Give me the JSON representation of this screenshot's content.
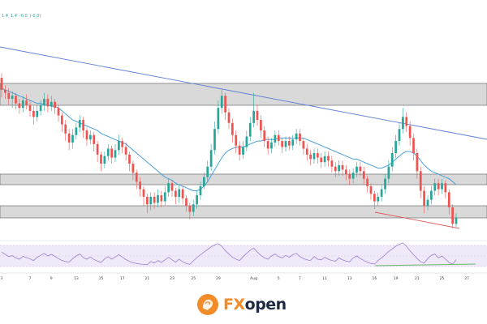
{
  "info": {
    "price1": "1.4",
    "price2": "1.4",
    "change": "-0.0",
    "change_pct": "(-0.0)"
  },
  "brand": {
    "fx": "FX",
    "open": "open"
  },
  "chart_data": {
    "type": "candlestick",
    "title": "",
    "colors": {
      "up": "#26a69a",
      "down": "#ef5350",
      "ma": "#4a9fd8",
      "trendline": "#5b7fd6",
      "support_line": "#e05a5a",
      "zone_fill": "#d9d9d9",
      "rsi": "#9b7fd1",
      "rsi_trend": "#66bb6a"
    },
    "x_tick_labels": [
      {
        "label": "3",
        "i": 0
      },
      {
        "label": "7",
        "i": 8
      },
      {
        "label": "9",
        "i": 14
      },
      {
        "label": "13",
        "i": 21
      },
      {
        "label": "15",
        "i": 28
      },
      {
        "label": "17",
        "i": 34
      },
      {
        "label": "21",
        "i": 41
      },
      {
        "label": "23",
        "i": 48
      },
      {
        "label": "25",
        "i": 54
      },
      {
        "label": "29",
        "i": 61
      },
      {
        "label": "Aug",
        "i": 71
      },
      {
        "label": "5",
        "i": 78
      },
      {
        "label": "7",
        "i": 84
      },
      {
        "label": "11",
        "i": 91
      },
      {
        "label": "13",
        "i": 98
      },
      {
        "label": "16",
        "i": 105
      },
      {
        "label": "19",
        "i": 111
      },
      {
        "label": "21",
        "i": 117
      },
      {
        "label": "25",
        "i": 124
      },
      {
        "label": "27",
        "i": 131
      }
    ],
    "candles": [
      [
        1.0,
        0.92,
        0.87,
        1.03
      ],
      [
        0.92,
        0.9,
        0.86,
        0.95
      ],
      [
        0.9,
        0.86,
        0.82,
        0.93
      ],
      [
        0.86,
        0.88,
        0.8,
        0.91
      ],
      [
        0.88,
        0.83,
        0.79,
        0.9
      ],
      [
        0.83,
        0.8,
        0.76,
        0.86
      ],
      [
        0.8,
        0.85,
        0.77,
        0.88
      ],
      [
        0.85,
        0.82,
        0.79,
        0.89
      ],
      [
        0.82,
        0.78,
        0.74,
        0.85
      ],
      [
        0.78,
        0.74,
        0.69,
        0.81
      ],
      [
        0.74,
        0.78,
        0.71,
        0.82
      ],
      [
        0.78,
        0.82,
        0.75,
        0.85
      ],
      [
        0.82,
        0.86,
        0.78,
        0.9
      ],
      [
        0.86,
        0.81,
        0.77,
        0.89
      ],
      [
        0.81,
        0.84,
        0.78,
        0.88
      ],
      [
        0.84,
        0.8,
        0.76,
        0.86
      ],
      [
        0.8,
        0.75,
        0.71,
        0.82
      ],
      [
        0.75,
        0.69,
        0.64,
        0.77
      ],
      [
        0.69,
        0.63,
        0.58,
        0.72
      ],
      [
        0.63,
        0.57,
        0.52,
        0.66
      ],
      [
        0.57,
        0.62,
        0.53,
        0.66
      ],
      [
        0.62,
        0.67,
        0.59,
        0.7
      ],
      [
        0.67,
        0.72,
        0.64,
        0.75
      ],
      [
        0.72,
        0.65,
        0.6,
        0.74
      ],
      [
        0.65,
        0.59,
        0.55,
        0.67
      ],
      [
        0.59,
        0.62,
        0.56,
        0.65
      ],
      [
        0.62,
        0.56,
        0.51,
        0.64
      ],
      [
        0.56,
        0.49,
        0.44,
        0.58
      ],
      [
        0.49,
        0.43,
        0.38,
        0.51
      ],
      [
        0.43,
        0.48,
        0.4,
        0.51
      ],
      [
        0.48,
        0.53,
        0.45,
        0.56
      ],
      [
        0.53,
        0.47,
        0.43,
        0.55
      ],
      [
        0.47,
        0.52,
        0.44,
        0.56
      ],
      [
        0.52,
        0.58,
        0.49,
        0.62
      ],
      [
        0.58,
        0.54,
        0.5,
        0.6
      ],
      [
        0.54,
        0.49,
        0.45,
        0.57
      ],
      [
        0.49,
        0.43,
        0.38,
        0.51
      ],
      [
        0.43,
        0.37,
        0.32,
        0.45
      ],
      [
        0.37,
        0.31,
        0.26,
        0.39
      ],
      [
        0.31,
        0.26,
        0.21,
        0.34
      ],
      [
        0.26,
        0.21,
        0.15,
        0.28
      ],
      [
        0.21,
        0.16,
        0.1,
        0.23
      ],
      [
        0.16,
        0.21,
        0.12,
        0.24
      ],
      [
        0.21,
        0.17,
        0.13,
        0.24
      ],
      [
        0.17,
        0.22,
        0.14,
        0.26
      ],
      [
        0.22,
        0.18,
        0.14,
        0.25
      ],
      [
        0.18,
        0.24,
        0.15,
        0.28
      ],
      [
        0.24,
        0.3,
        0.21,
        0.33
      ],
      [
        0.3,
        0.25,
        0.21,
        0.32
      ],
      [
        0.25,
        0.21,
        0.16,
        0.27
      ],
      [
        0.21,
        0.26,
        0.17,
        0.29
      ],
      [
        0.26,
        0.2,
        0.16,
        0.28
      ],
      [
        0.2,
        0.15,
        0.11,
        0.22
      ],
      [
        0.15,
        0.11,
        0.06,
        0.17
      ],
      [
        0.11,
        0.16,
        0.08,
        0.19
      ],
      [
        0.16,
        0.22,
        0.13,
        0.25
      ],
      [
        0.22,
        0.28,
        0.19,
        0.31
      ],
      [
        0.28,
        0.34,
        0.26,
        0.37
      ],
      [
        0.34,
        0.41,
        0.31,
        0.45
      ],
      [
        0.41,
        0.52,
        0.38,
        0.56
      ],
      [
        0.52,
        0.66,
        0.49,
        0.71
      ],
      [
        0.66,
        0.8,
        0.63,
        0.85
      ],
      [
        0.8,
        0.88,
        0.76,
        0.92
      ],
      [
        0.88,
        0.77,
        0.72,
        0.9
      ],
      [
        0.77,
        0.7,
        0.66,
        0.8
      ],
      [
        0.7,
        0.62,
        0.57,
        0.73
      ],
      [
        0.62,
        0.55,
        0.5,
        0.65
      ],
      [
        0.55,
        0.49,
        0.45,
        0.58
      ],
      [
        0.49,
        0.54,
        0.46,
        0.58
      ],
      [
        0.54,
        0.61,
        0.51,
        0.65
      ],
      [
        0.61,
        0.7,
        0.58,
        0.74
      ],
      [
        0.7,
        0.78,
        0.67,
        0.9
      ],
      [
        0.78,
        0.72,
        0.68,
        0.82
      ],
      [
        0.72,
        0.65,
        0.6,
        0.75
      ],
      [
        0.65,
        0.58,
        0.54,
        0.68
      ],
      [
        0.58,
        0.53,
        0.49,
        0.61
      ],
      [
        0.53,
        0.57,
        0.5,
        0.6
      ],
      [
        0.57,
        0.62,
        0.54,
        0.65
      ],
      [
        0.62,
        0.58,
        0.55,
        0.65
      ],
      [
        0.58,
        0.54,
        0.5,
        0.6
      ],
      [
        0.54,
        0.58,
        0.51,
        0.61
      ],
      [
        0.58,
        0.55,
        0.52,
        0.61
      ],
      [
        0.55,
        0.59,
        0.52,
        0.62
      ],
      [
        0.59,
        0.63,
        0.56,
        0.66
      ],
      [
        0.63,
        0.58,
        0.55,
        0.66
      ],
      [
        0.58,
        0.53,
        0.49,
        0.6
      ],
      [
        0.53,
        0.49,
        0.45,
        0.56
      ],
      [
        0.49,
        0.46,
        0.42,
        0.52
      ],
      [
        0.46,
        0.5,
        0.43,
        0.53
      ],
      [
        0.5,
        0.47,
        0.43,
        0.53
      ],
      [
        0.47,
        0.44,
        0.4,
        0.5
      ],
      [
        0.44,
        0.48,
        0.41,
        0.51
      ],
      [
        0.48,
        0.45,
        0.41,
        0.51
      ],
      [
        0.45,
        0.41,
        0.37,
        0.48
      ],
      [
        0.41,
        0.38,
        0.34,
        0.44
      ],
      [
        0.38,
        0.42,
        0.35,
        0.45
      ],
      [
        0.42,
        0.39,
        0.35,
        0.45
      ],
      [
        0.39,
        0.36,
        0.32,
        0.42
      ],
      [
        0.36,
        0.33,
        0.29,
        0.39
      ],
      [
        0.33,
        0.37,
        0.3,
        0.4
      ],
      [
        0.37,
        0.41,
        0.34,
        0.44
      ],
      [
        0.41,
        0.38,
        0.35,
        0.44
      ],
      [
        0.38,
        0.33,
        0.29,
        0.41
      ],
      [
        0.33,
        0.28,
        0.24,
        0.35
      ],
      [
        0.28,
        0.23,
        0.19,
        0.3
      ],
      [
        0.23,
        0.18,
        0.13,
        0.25
      ],
      [
        0.18,
        0.21,
        0.15,
        0.24
      ],
      [
        0.21,
        0.26,
        0.18,
        0.29
      ],
      [
        0.26,
        0.33,
        0.23,
        0.36
      ],
      [
        0.33,
        0.41,
        0.3,
        0.45
      ],
      [
        0.41,
        0.5,
        0.38,
        0.54
      ],
      [
        0.5,
        0.58,
        0.47,
        0.62
      ],
      [
        0.58,
        0.66,
        0.55,
        0.7
      ],
      [
        0.66,
        0.74,
        0.63,
        0.8
      ],
      [
        0.74,
        0.68,
        0.64,
        0.77
      ],
      [
        0.68,
        0.6,
        0.55,
        0.71
      ],
      [
        0.6,
        0.5,
        0.45,
        0.63
      ],
      [
        0.5,
        0.38,
        0.33,
        0.53
      ],
      [
        0.38,
        0.25,
        0.2,
        0.41
      ],
      [
        0.25,
        0.15,
        0.1,
        0.28
      ],
      [
        0.15,
        0.19,
        0.12,
        0.22
      ],
      [
        0.19,
        0.25,
        0.16,
        0.28
      ],
      [
        0.25,
        0.3,
        0.22,
        0.33
      ],
      [
        0.3,
        0.26,
        0.22,
        0.33
      ],
      [
        0.26,
        0.3,
        0.23,
        0.33
      ],
      [
        0.3,
        0.24,
        0.2,
        0.32
      ],
      [
        0.24,
        0.14,
        0.09,
        0.26
      ],
      [
        0.14,
        0.03,
        0.0,
        0.16
      ],
      [
        0.03,
        0.07,
        0.01,
        0.1
      ]
    ],
    "ma": [
      0.93,
      0.92,
      0.91,
      0.9,
      0.89,
      0.88,
      0.87,
      0.86,
      0.85,
      0.84,
      0.83,
      0.83,
      0.82,
      0.82,
      0.81,
      0.81,
      0.8,
      0.78,
      0.76,
      0.74,
      0.72,
      0.71,
      0.7,
      0.69,
      0.68,
      0.67,
      0.66,
      0.65,
      0.63,
      0.62,
      0.61,
      0.6,
      0.59,
      0.58,
      0.57,
      0.56,
      0.54,
      0.52,
      0.5,
      0.48,
      0.46,
      0.44,
      0.42,
      0.4,
      0.38,
      0.36,
      0.34,
      0.33,
      0.32,
      0.3,
      0.29,
      0.28,
      0.27,
      0.26,
      0.25,
      0.25,
      0.26,
      0.28,
      0.31,
      0.35,
      0.39,
      0.43,
      0.47,
      0.5,
      0.52,
      0.53,
      0.54,
      0.54,
      0.54,
      0.55,
      0.56,
      0.57,
      0.58,
      0.58,
      0.59,
      0.59,
      0.59,
      0.59,
      0.6,
      0.6,
      0.6,
      0.6,
      0.6,
      0.6,
      0.6,
      0.6,
      0.59,
      0.58,
      0.57,
      0.56,
      0.55,
      0.54,
      0.53,
      0.52,
      0.51,
      0.5,
      0.49,
      0.48,
      0.47,
      0.46,
      0.46,
      0.45,
      0.44,
      0.43,
      0.42,
      0.41,
      0.4,
      0.4,
      0.41,
      0.42,
      0.44,
      0.46,
      0.48,
      0.5,
      0.51,
      0.51,
      0.5,
      0.48,
      0.45,
      0.42,
      0.4,
      0.38,
      0.37,
      0.36,
      0.35,
      0.34,
      0.33,
      0.31,
      0.29
    ]
  },
  "rsi_data": [
    62,
    55,
    48,
    51,
    44,
    40,
    49,
    45,
    41,
    36,
    46,
    52,
    58,
    50,
    55,
    49,
    42,
    36,
    33,
    31,
    42,
    50,
    56,
    45,
    40,
    47,
    39,
    34,
    30,
    41,
    48,
    40,
    47,
    54,
    46,
    39,
    33,
    29,
    27,
    25,
    24,
    23,
    33,
    28,
    36,
    30,
    38,
    46,
    38,
    31,
    40,
    32,
    27,
    24,
    35,
    45,
    54,
    62,
    70,
    78,
    84,
    88,
    80,
    66,
    56,
    46,
    40,
    36,
    48,
    58,
    68,
    74,
    62,
    52,
    44,
    40,
    50,
    56,
    48,
    44,
    52,
    46,
    54,
    58,
    48,
    42,
    38,
    36,
    48,
    40,
    38,
    46,
    40,
    36,
    34,
    44,
    38,
    34,
    32,
    44,
    50,
    42,
    36,
    31,
    27,
    25,
    36,
    44,
    54,
    64,
    72,
    80,
    86,
    90,
    80,
    66,
    54,
    42,
    32,
    28,
    42,
    52,
    56,
    44,
    50,
    40,
    30,
    24,
    38
  ]
}
